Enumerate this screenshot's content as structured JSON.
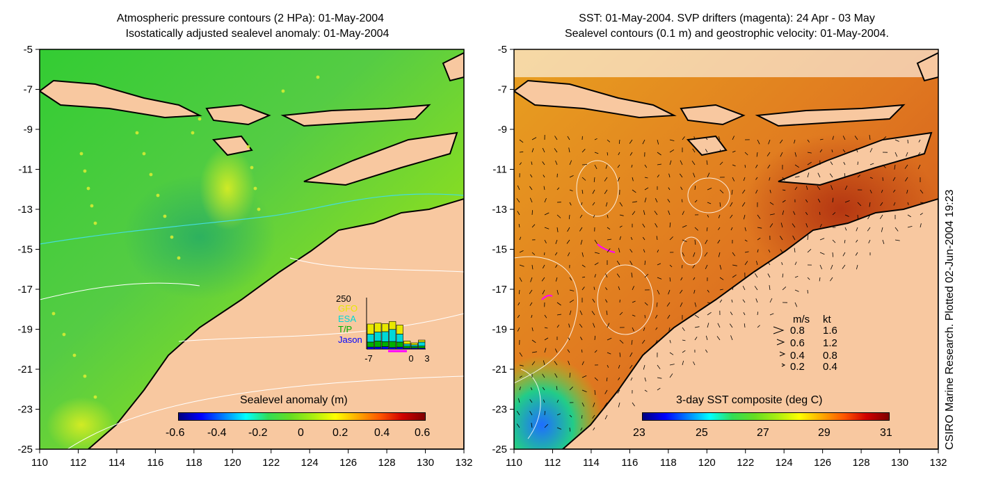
{
  "left_panel": {
    "title_line1": "Atmospheric pressure contours (2 HPa): 01-May-2004",
    "title_line2": "Isostatically adjusted sealevel anomaly: 01-May-2004",
    "colorbar_label": "Sealevel anomaly (m)",
    "colorbar_ticks": [
      "-0.6",
      "-0.4",
      "-0.2",
      "0",
      "0.2",
      "0.4",
      "0.6"
    ],
    "inset": {
      "ymax_label": "250",
      "legend": [
        {
          "label": "GFO",
          "color": "#e8e800"
        },
        {
          "label": "ESA",
          "color": "#00d8d8"
        },
        {
          "label": "T/P",
          "color": "#00b000"
        },
        {
          "label": "Jason",
          "color": "#0000ff"
        }
      ],
      "x_ticks": [
        "-7",
        "0",
        "3"
      ],
      "bars": [
        {
          "jason": 10,
          "tp": 25,
          "esa": 40,
          "gfo": 50
        },
        {
          "jason": 10,
          "tp": 30,
          "esa": 45,
          "gfo": 45
        },
        {
          "jason": 12,
          "tp": 25,
          "esa": 50,
          "gfo": 40
        },
        {
          "jason": 8,
          "tp": 30,
          "esa": 60,
          "gfo": 40
        },
        {
          "jason": 10,
          "tp": 25,
          "esa": 40,
          "gfo": 45
        },
        {
          "jason": 5,
          "tp": 10,
          "esa": 10,
          "gfo": 15
        },
        {
          "jason": 5,
          "tp": 8,
          "esa": 8,
          "gfo": 10
        },
        {
          "jason": 5,
          "tp": 10,
          "esa": 20,
          "gfo": 10
        }
      ]
    }
  },
  "right_panel": {
    "title_line1": "SST: 01-May-2004. SVP drifters (magenta): 24 Apr - 03 May",
    "title_line2": "Sealevel contours (0.1 m) and geostrophic velocity: 01-May-2004.",
    "colorbar_label": "3-day SST composite (deg C)",
    "colorbar_ticks": [
      "23",
      "25",
      "27",
      "29",
      "31"
    ],
    "velocity_legend": {
      "header_ms": "m/s",
      "header_kt": "kt",
      "rows": [
        {
          "ms": "0.8",
          "kt": "1.6"
        },
        {
          "ms": "0.6",
          "kt": "1.2"
        },
        {
          "ms": "0.4",
          "kt": "0.8"
        },
        {
          "ms": "0.2",
          "kt": "0.4"
        }
      ]
    }
  },
  "y_ticks": [
    "-5",
    "-7",
    "-9",
    "-11",
    "-13",
    "-15",
    "-17",
    "-19",
    "-21",
    "-23",
    "-25"
  ],
  "x_ticks": [
    "110",
    "112",
    "114",
    "116",
    "118",
    "120",
    "122",
    "124",
    "126",
    "128",
    "130",
    "132"
  ],
  "side_note": "CSIRO Marine Research. Plotted 02-Jun-2004 19:23",
  "colors": {
    "land": "#f8c8a0",
    "ocean_left": "#44cc22",
    "ocean_right": "#e08a20",
    "coastline": "#000000"
  }
}
